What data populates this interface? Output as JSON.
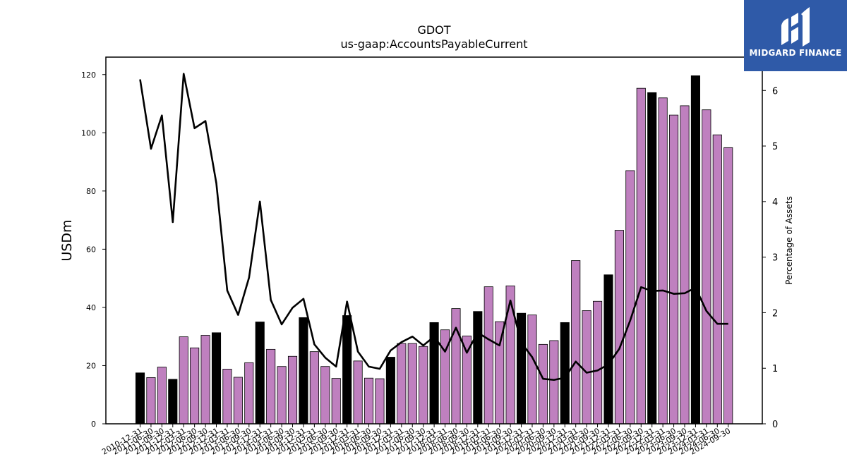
{
  "chart_data": {
    "type": "bar",
    "title": "GDOT",
    "subtitle": "us-gaap:AccountsPayableCurrent",
    "ylabel": "USDm",
    "y2label": "Percentage of Assets",
    "ylim": [
      0,
      126
    ],
    "y2lim": [
      0,
      6.6
    ],
    "yticks": [
      "0",
      "20",
      "40",
      "60",
      "80",
      "100",
      "120"
    ],
    "y2ticks": [
      "0",
      "1",
      "2",
      "3",
      "4",
      "5",
      "6"
    ],
    "colors": {
      "bar_regular": "#bf80bf",
      "bar_highlight": "#000000",
      "line": "#000000"
    },
    "categories": [
      "2010-12-31",
      "2011-06-30",
      "2011-09-30",
      "2011-12-31",
      "2012-03-31",
      "2012-06-30",
      "2012-09-30",
      "2012-12-31",
      "2013-03-31",
      "2013-06-30",
      "2013-09-30",
      "2013-12-31",
      "2014-03-31",
      "2014-06-30",
      "2014-09-30",
      "2014-12-31",
      "2015-03-31",
      "2015-06-30",
      "2015-09-30",
      "2015-12-31",
      "2016-03-31",
      "2016-06-30",
      "2016-09-30",
      "2016-12-31",
      "2017-03-31",
      "2017-06-30",
      "2017-09-30",
      "2017-12-31",
      "2018-03-31",
      "2018-06-30",
      "2018-09-30",
      "2018-12-31",
      "2019-03-31",
      "2019-06-30",
      "2019-09-30",
      "2019-12-31",
      "2020-03-31",
      "2020-06-30",
      "2020-09-30",
      "2020-12-31",
      "2021-03-31",
      "2021-06-30",
      "2021-09-30",
      "2021-12-31",
      "2022-03-31",
      "2022-06-30",
      "2022-09-30",
      "2022-12-31",
      "2023-03-31",
      "2023-06-30",
      "2023-09-30",
      "2023-12-31",
      "2024-03-31",
      "2024-06-30",
      "2024-09-30"
    ],
    "series": [
      {
        "type": "bar",
        "values": [
          17.5,
          15.9,
          19.5,
          15.3,
          29.9,
          26.1,
          30.4,
          31.3,
          18.8,
          16.0,
          21.0,
          35.0,
          25.6,
          19.7,
          23.2,
          36.5,
          24.8,
          19.7,
          15.6,
          37.2,
          21.6,
          15.7,
          15.5,
          22.9,
          27.6,
          27.6,
          26.6,
          34.8,
          32.3,
          39.6,
          30.2,
          38.6,
          47.1,
          35.1,
          47.4,
          38.0,
          37.4,
          27.3,
          28.6,
          34.8,
          56.1,
          38.9,
          42.1,
          51.2,
          66.5,
          87.0,
          115.3,
          113.8,
          112.0,
          106.1,
          109.3,
          119.6,
          107.9,
          99.3,
          94.9
        ],
        "highlight": [
          true,
          false,
          false,
          true,
          false,
          false,
          false,
          true,
          false,
          false,
          false,
          true,
          false,
          false,
          false,
          true,
          false,
          false,
          false,
          true,
          false,
          false,
          false,
          true,
          false,
          false,
          false,
          true,
          false,
          false,
          false,
          true,
          false,
          false,
          false,
          true,
          false,
          false,
          false,
          true,
          false,
          false,
          false,
          true,
          false,
          false,
          false,
          true,
          false,
          false,
          false,
          true,
          false,
          false,
          false
        ]
      },
      {
        "type": "line",
        "axis": "right",
        "values": [
          6.2,
          4.95,
          5.55,
          3.63,
          6.3,
          5.32,
          5.45,
          4.33,
          2.4,
          1.96,
          2.63,
          4.0,
          2.23,
          1.79,
          2.09,
          2.25,
          1.43,
          1.19,
          1.03,
          2.2,
          1.3,
          1.03,
          0.99,
          1.32,
          1.47,
          1.57,
          1.41,
          1.57,
          1.3,
          1.73,
          1.28,
          1.64,
          1.52,
          1.41,
          2.22,
          1.46,
          1.2,
          0.81,
          0.79,
          0.83,
          1.12,
          0.92,
          0.96,
          1.07,
          1.35,
          1.86,
          2.46,
          2.39,
          2.4,
          2.34,
          2.35,
          2.45,
          2.03,
          1.8,
          1.8
        ]
      }
    ]
  },
  "logo": {
    "text": "MIDGARD FINANCE"
  }
}
